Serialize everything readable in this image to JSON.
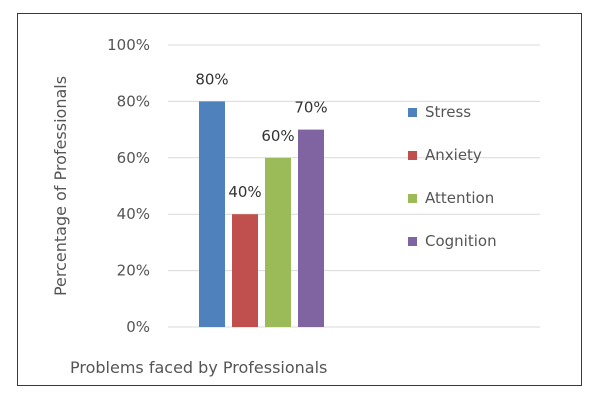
{
  "chart_data": {
    "type": "bar",
    "title": "",
    "xlabel": "Problems faced by Professionals",
    "ylabel": "Percentage of Professionals",
    "ylim": [
      0,
      100
    ],
    "yticks": [
      0,
      20,
      40,
      60,
      80,
      100
    ],
    "ytick_suffix": "%",
    "grid": true,
    "legend_position": "right",
    "series": [
      {
        "name": "Stress",
        "value": 80,
        "label": "80%",
        "color": "#4F81BD"
      },
      {
        "name": "Anxiety",
        "value": 40,
        "label": "40%",
        "color": "#C0504D"
      },
      {
        "name": "Attention",
        "value": 60,
        "label": "60%",
        "color": "#9BBB59"
      },
      {
        "name": "Cognition",
        "value": 70,
        "label": "70%",
        "color": "#8064A2"
      }
    ]
  }
}
